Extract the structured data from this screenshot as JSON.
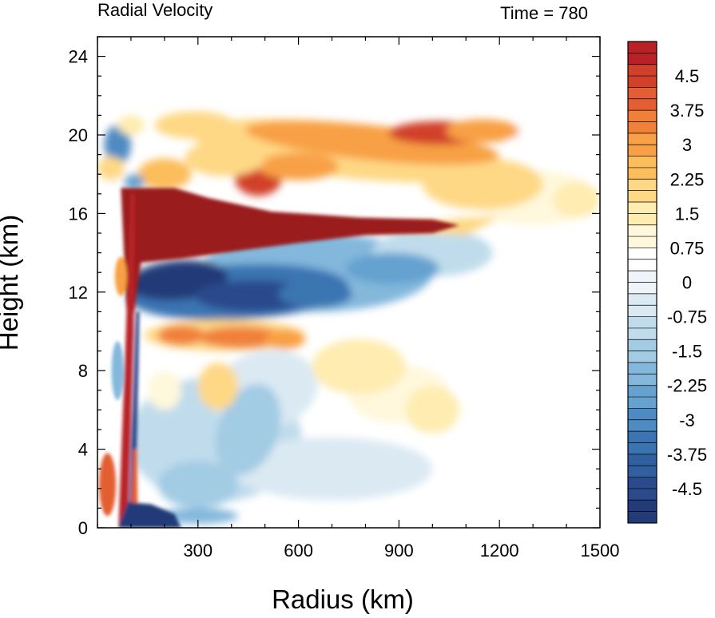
{
  "chart_data": {
    "type": "heatmap",
    "title": "Radial Velocity",
    "subtitle": "Time = 780",
    "xlabel": "Radius (km)",
    "ylabel": "Height (km)",
    "xlim": [
      0,
      1500
    ],
    "ylim": [
      0,
      25
    ],
    "xticks": [
      300,
      600,
      900,
      1200,
      1500
    ],
    "yticks": [
      0,
      4,
      8,
      12,
      16,
      20,
      24
    ],
    "colorbar": {
      "levels": [
        -5.25,
        -5,
        -4.75,
        -4.5,
        -4.25,
        -4,
        -3.75,
        -3.5,
        -3.25,
        -3,
        -2.75,
        -2.5,
        -2.25,
        -2,
        -1.75,
        -1.5,
        -1.25,
        -1,
        -0.75,
        -0.5,
        -0.25,
        0,
        0.25,
        0.5,
        0.75,
        1,
        1.25,
        1.5,
        1.75,
        2,
        2.25,
        2.5,
        2.75,
        3,
        3.25,
        3.5,
        3.75,
        4,
        4.25,
        4.5,
        4.75,
        5,
        5.25
      ],
      "labels": [
        "4.5",
        "3.75",
        "3",
        "2.25",
        "1.5",
        "0.75",
        "0",
        "-0.75",
        "-1.5",
        "-2.25",
        "-3",
        "-3.75",
        "-4.5"
      ],
      "label_values": [
        4.5,
        3.75,
        3,
        2.25,
        1.5,
        0.75,
        0,
        -0.75,
        -1.5,
        -2.25,
        -3,
        -3.75,
        -4.5
      ],
      "colors": [
        "#1d2e66",
        "#233b78",
        "#2a4a8c",
        "#3160a0",
        "#3b74b2",
        "#4d8bc2",
        "#65a2d0",
        "#83b8dc",
        "#a2cbe4",
        "#c0dcec",
        "#dbe9f3",
        "#eef4f9",
        "#ffffff",
        "#fff8dc",
        "#ffecb0",
        "#fed885",
        "#fcbd5b",
        "#f8a045",
        "#f0803a",
        "#e35f33",
        "#d1402b",
        "#b82226",
        "#9a1b1d"
      ]
    },
    "features": [
      {
        "name": "upper outflow jet",
        "sign": "positive",
        "radius_km": [
          70,
          1080
        ],
        "height_km": [
          13.5,
          17.3
        ],
        "peak": 5.25
      },
      {
        "name": "upper outflow layer",
        "sign": "positive",
        "radius_km": [
          300,
          1250
        ],
        "height_km": [
          17.5,
          21
        ],
        "peak": 4.8
      },
      {
        "name": "mid-level inflow",
        "sign": "negative",
        "radius_km": [
          100,
          750
        ],
        "height_km": [
          10.5,
          13.5
        ],
        "peak": -5.0
      },
      {
        "name": "mid-level outflow",
        "sign": "positive",
        "radius_km": [
          180,
          620
        ],
        "height_km": [
          8.5,
          10.8
        ],
        "peak": 3.5
      },
      {
        "name": "boundary layer inflow",
        "sign": "negative",
        "radius_km": [
          60,
          300
        ],
        "height_km": [
          0,
          1.2
        ],
        "peak": -5.25
      },
      {
        "name": "eyewall outflow",
        "sign": "positive",
        "radius_km": [
          0,
          130
        ],
        "height_km": [
          0.5,
          5
        ],
        "peak": 4.0
      }
    ]
  }
}
